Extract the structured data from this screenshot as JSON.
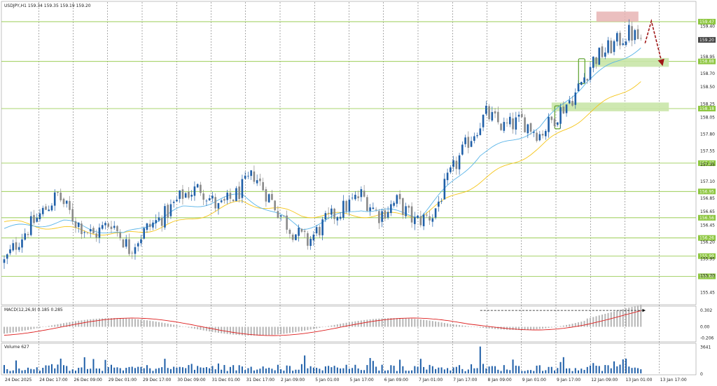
{
  "header": {
    "symbol_line": "USDJPY,H1  159.34 159.35 159.19 159.20",
    "macd_label": "MACD(12,26,9) 0.185 0.285",
    "volume_label": "Volume 627"
  },
  "colors": {
    "background": "#ffffff",
    "level_line": "#8dc63f",
    "level_tag": "#8dc63f",
    "bull_candle": "#1f5fa8",
    "bear_candle": "#8a8a8a",
    "ema_fast": "#59b4e8",
    "ema_slow": "#f5c518",
    "macd_hist": "#b5b5b5",
    "macd_signal": "#dd1e1e",
    "volume_bar": "#1f5fa8",
    "arrow": "#a01818",
    "sell_zone": "#e8b4b4",
    "buy_zone": "#c9e6a9",
    "grid": "#555555"
  },
  "chart_data": [
    {
      "type": "candlestick",
      "title": "USDJPY,H1",
      "ohlc_last": {
        "open": 159.34,
        "high": 159.35,
        "low": 159.19,
        "close": 159.2
      },
      "current_price_label": "159.20",
      "y_ticks": [
        "159.40",
        "158.95",
        "158.70",
        "158.50",
        "158.25",
        "158.05",
        "157.80",
        "157.55",
        "157.35",
        "157.10",
        "156.85",
        "156.65",
        "156.45",
        "156.20",
        "155.95",
        "155.70",
        "155.45"
      ],
      "price_levels": [
        {
          "price": 159.47,
          "label": "159.47"
        },
        {
          "price": 158.88,
          "label": "158.88"
        },
        {
          "price": 158.18,
          "label": "158.18"
        },
        {
          "price": 157.37,
          "label": "157.37"
        },
        {
          "price": 156.95,
          "label": "156.95"
        },
        {
          "price": 156.56,
          "label": "156.56"
        },
        {
          "price": 156.26,
          "label": "156.26"
        },
        {
          "price": 155.99,
          "label": "155.99"
        },
        {
          "price": 155.69,
          "label": "155.69"
        }
      ],
      "x_ticks": [
        "24 Dec 2025",
        "24 Dec 17:00",
        "26 Dec 09:00",
        "29 Dec 01:00",
        "29 Dec 17:00",
        "30 Dec 09:00",
        "31 Dec 01:00",
        "31 Dec 17:00",
        "2 Jan 09:00",
        "5 Jan 01:00",
        "5 Jan 17:00",
        "6 Jan 09:00",
        "7 Jan 01:00",
        "7 Jan 17:00",
        "8 Jan 09:00",
        "9 Jan 01:00",
        "9 Jan 17:00",
        "12 Jan 09:00",
        "13 Jan 01:00",
        "13 Jan 17:00"
      ],
      "ylim": [
        155.3,
        159.75
      ],
      "close_path": [
        [
          0,
          155.9
        ],
        [
          6,
          156.3
        ],
        [
          12,
          156.6
        ],
        [
          18,
          156.9
        ],
        [
          24,
          156.5
        ],
        [
          30,
          156.3
        ],
        [
          36,
          156.5
        ],
        [
          42,
          156.1
        ],
        [
          48,
          156.4
        ],
        [
          54,
          156.6
        ],
        [
          60,
          156.9
        ],
        [
          66,
          157.0
        ],
        [
          72,
          156.7
        ],
        [
          78,
          156.9
        ],
        [
          84,
          157.2
        ],
        [
          90,
          156.8
        ],
        [
          96,
          156.4
        ],
        [
          102,
          156.2
        ],
        [
          108,
          156.5
        ],
        [
          114,
          156.7
        ],
        [
          120,
          156.9
        ],
        [
          126,
          156.6
        ],
        [
          132,
          156.8
        ],
        [
          138,
          156.5
        ],
        [
          144,
          156.6
        ],
        [
          150,
          157.2
        ],
        [
          156,
          157.7
        ],
        [
          162,
          158.1
        ],
        [
          168,
          157.9
        ],
        [
          174,
          158.0
        ],
        [
          180,
          157.8
        ],
        [
          186,
          158.1
        ],
        [
          192,
          158.4
        ],
        [
          198,
          158.9
        ],
        [
          204,
          159.1
        ],
        [
          210,
          159.3
        ],
        [
          214,
          159.2
        ]
      ],
      "ema_fast_path": [
        [
          0,
          156.4
        ],
        [
          20,
          156.5
        ],
        [
          40,
          156.3
        ],
        [
          60,
          156.7
        ],
        [
          80,
          156.9
        ],
        [
          100,
          156.4
        ],
        [
          120,
          156.7
        ],
        [
          140,
          156.6
        ],
        [
          160,
          157.5
        ],
        [
          180,
          157.9
        ],
        [
          196,
          158.6
        ],
        [
          214,
          159.1
        ]
      ],
      "ema_slow_path": [
        [
          0,
          156.5
        ],
        [
          20,
          156.4
        ],
        [
          40,
          156.3
        ],
        [
          60,
          156.5
        ],
        [
          80,
          156.8
        ],
        [
          100,
          156.6
        ],
        [
          120,
          156.6
        ],
        [
          140,
          156.6
        ],
        [
          160,
          157.1
        ],
        [
          180,
          157.6
        ],
        [
          196,
          158.1
        ],
        [
          214,
          158.6
        ]
      ]
    },
    {
      "type": "bar",
      "title": "MACD(12,26,9)",
      "y_ticks": [
        "0.302",
        "0.00",
        "-0.206"
      ],
      "ylim": [
        -0.25,
        0.34
      ]
    },
    {
      "type": "bar",
      "title": "Volume",
      "y_ticks": [
        "3641",
        "0"
      ],
      "ylim": [
        0,
        3800
      ]
    }
  ]
}
